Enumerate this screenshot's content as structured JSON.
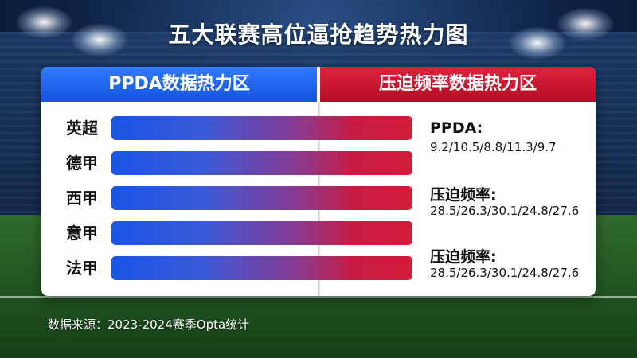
{
  "title": "五大联赛高位逼抢趋势热力图",
  "headers": {
    "left": "PPDA数据热力区",
    "right": "压迫频率数据热力区"
  },
  "annotations": [
    {
      "label": "PPDA:",
      "values": "9.2/10.5/8.8/11.3/9.7"
    },
    {
      "label": "压迫频率:",
      "values": "28.5/26.3/30.1/24.8/27.6"
    },
    {
      "label": "压迫频率:",
      "values": "28.5/26.3/30.1/24.8/27.6"
    }
  ],
  "source": "数据来源：2023-2024赛季Opta统计",
  "colors": {
    "blue": "#1a55e6",
    "red": "#d41c3a"
  },
  "chart_data": {
    "type": "heatmap",
    "title": "五大联赛高位逼抢趋势热力图",
    "categories": [
      "英超",
      "德甲",
      "西甲",
      "意甲",
      "法甲"
    ],
    "series": [
      {
        "name": "PPDA",
        "values": [
          9.2,
          10.5,
          8.8,
          11.3,
          9.7
        ]
      },
      {
        "name": "压迫频率",
        "values": [
          28.5,
          26.3,
          30.1,
          24.8,
          27.6
        ]
      }
    ]
  }
}
